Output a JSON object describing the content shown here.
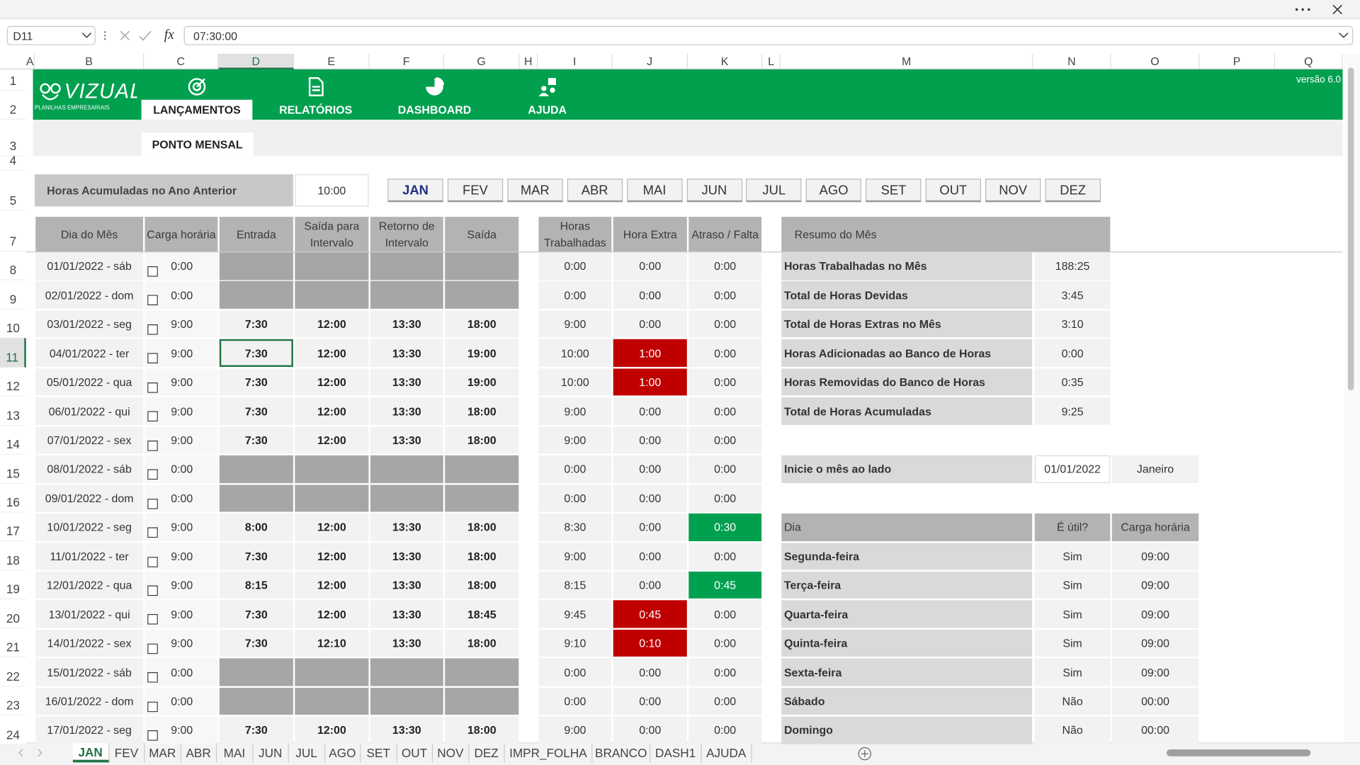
{
  "formula_bar": {
    "name_box": "D11",
    "function_icon": "fx",
    "formula": "07:30:00"
  },
  "columns": [
    "A",
    "B",
    "C",
    "D",
    "E",
    "F",
    "G",
    "H",
    "I",
    "J",
    "K",
    "L",
    "M",
    "N",
    "O",
    "P",
    "Q"
  ],
  "rows": [
    1,
    2,
    3,
    4,
    5,
    7,
    8,
    9,
    10,
    11,
    12,
    13,
    14,
    15,
    16,
    17,
    18,
    19,
    20,
    21,
    22,
    23,
    24
  ],
  "logo": {
    "name": "VIZUAL",
    "tagline": "PLANILHAS EMPRESARIAIS"
  },
  "version": "versão 6.0",
  "nav": [
    "LANÇAMENTOS",
    "RELATÓRIOS",
    "DASHBOARD",
    "AJUDA"
  ],
  "subtab": "PONTO MENSAL",
  "accumulated": {
    "label": "Horas Acumuladas no Ano Anterior",
    "value": "10:00"
  },
  "months": [
    "JAN",
    "FEV",
    "MAR",
    "ABR",
    "MAI",
    "JUN",
    "JUL",
    "AGO",
    "SET",
    "OUT",
    "NOV",
    "DEZ"
  ],
  "table": {
    "headers": [
      "Dia do Mês",
      "Carga horária",
      "Entrada",
      "Saída para Intervalo",
      "Retorno de Intervalo",
      "Saída",
      "Horas Trabalhadas",
      "Hora Extra",
      "Atraso / Falta"
    ],
    "rows": [
      [
        "01/01/2022 - sáb",
        "0:00",
        null,
        null,
        null,
        null,
        "0:00",
        "0:00",
        "0:00"
      ],
      [
        "02/01/2022 - dom",
        "0:00",
        null,
        null,
        null,
        null,
        "0:00",
        "0:00",
        "0:00"
      ],
      [
        "03/01/2022 - seg",
        "9:00",
        "7:30",
        "12:00",
        "13:30",
        "18:00",
        "9:00",
        "0:00",
        "0:00"
      ],
      [
        "04/01/2022 - ter",
        "9:00",
        "7:30",
        "12:00",
        "13:30",
        "19:00",
        "10:00",
        "1:00",
        "0:00"
      ],
      [
        "05/01/2022 - qua",
        "9:00",
        "7:30",
        "12:00",
        "13:30",
        "19:00",
        "10:00",
        "1:00",
        "0:00"
      ],
      [
        "06/01/2022 - qui",
        "9:00",
        "7:30",
        "12:00",
        "13:30",
        "18:00",
        "9:00",
        "0:00",
        "0:00"
      ],
      [
        "07/01/2022 - sex",
        "9:00",
        "7:30",
        "12:00",
        "13:30",
        "18:00",
        "9:00",
        "0:00",
        "0:00"
      ],
      [
        "08/01/2022 - sáb",
        "0:00",
        null,
        null,
        null,
        null,
        "0:00",
        "0:00",
        "0:00"
      ],
      [
        "09/01/2022 - dom",
        "0:00",
        null,
        null,
        null,
        null,
        "0:00",
        "0:00",
        "0:00"
      ],
      [
        "10/01/2022 - seg",
        "9:00",
        "8:00",
        "12:00",
        "13:30",
        "18:00",
        "8:30",
        "0:00",
        "0:30"
      ],
      [
        "11/01/2022 - ter",
        "9:00",
        "7:30",
        "12:00",
        "13:30",
        "18:00",
        "9:00",
        "0:00",
        "0:00"
      ],
      [
        "12/01/2022 - qua",
        "9:00",
        "8:15",
        "12:00",
        "13:30",
        "18:00",
        "8:15",
        "0:00",
        "0:45"
      ],
      [
        "13/01/2022 - qui",
        "9:00",
        "7:30",
        "12:00",
        "13:30",
        "18:45",
        "9:45",
        "0:45",
        "0:00"
      ],
      [
        "14/01/2022 - sex",
        "9:00",
        "7:30",
        "12:10",
        "13:30",
        "18:00",
        "9:10",
        "0:10",
        "0:00"
      ],
      [
        "15/01/2022 - sáb",
        "0:00",
        null,
        null,
        null,
        null,
        "0:00",
        "0:00",
        "0:00"
      ],
      [
        "16/01/2022 - dom",
        "0:00",
        null,
        null,
        null,
        null,
        "0:00",
        "0:00",
        "0:00"
      ],
      [
        "17/01/2022 - seg",
        "9:00",
        "7:30",
        "12:00",
        "13:30",
        "18:00",
        "9:00",
        "0:00",
        "0:00"
      ]
    ]
  },
  "summary": {
    "title": "Resumo do Mês",
    "rows": [
      [
        "Horas Trabalhadas no Mês",
        "188:25"
      ],
      [
        "Total de Horas Devidas",
        "3:45"
      ],
      [
        "Total de Horas Extras no Mês",
        "3:10"
      ],
      [
        "Horas Adicionadas ao Banco de Horas",
        "0:00"
      ],
      [
        "Horas Removidas do Banco de Horas",
        "0:35"
      ],
      [
        "Total de Horas Acumuladas",
        "9:25"
      ]
    ]
  },
  "start": {
    "label": "Inicie o mês ao lado",
    "date": "01/01/2022",
    "month": "Janeiro"
  },
  "days": {
    "headers": [
      "Dia",
      "É útil?",
      "Carga horária"
    ],
    "rows": [
      [
        "Segunda-feira",
        "Sim",
        "09:00"
      ],
      [
        "Terça-feira",
        "Sim",
        "09:00"
      ],
      [
        "Quarta-feira",
        "Sim",
        "09:00"
      ],
      [
        "Quinta-feira",
        "Sim",
        "09:00"
      ],
      [
        "Sexta-feira",
        "Sim",
        "09:00"
      ],
      [
        "Sábado",
        "Não",
        "00:00"
      ],
      [
        "Domingo",
        "Não",
        "00:00"
      ]
    ]
  },
  "sheet_tabs": [
    "JAN",
    "FEV",
    "MAR",
    "ABR",
    "MAI",
    "JUN",
    "JUL",
    "AGO",
    "SET",
    "OUT",
    "NOV",
    "DEZ",
    "IMPR_FOLHA",
    "BRANCO",
    "DASH1",
    "AJUDA"
  ]
}
